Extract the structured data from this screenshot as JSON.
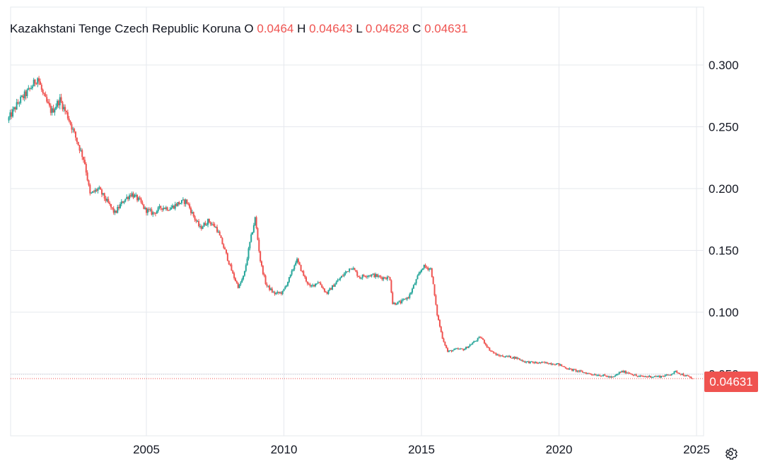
{
  "legend": {
    "symbol": "Kazakhstani Tenge Czech Republic Koruna",
    "o_label": "O",
    "o_value": "0.0464",
    "h_label": "H",
    "h_value": "0.04643",
    "l_label": "L",
    "l_value": "0.04628",
    "c_label": "C",
    "c_value": "0.04631"
  },
  "last_price_label": "0.04631",
  "colors": {
    "up": "#26a69a",
    "down": "#ef5350",
    "grid": "#e6e8ee",
    "text": "#131722"
  },
  "icons": {
    "settings": "gear-icon"
  },
  "chart_data": {
    "type": "candlestick",
    "title": "Kazakhstani Tenge Czech Republic Koruna",
    "x_ticks": [
      "2005",
      "2010",
      "2015",
      "2020",
      "2025"
    ],
    "y_ticks": [
      "0.300",
      "0.250",
      "0.200",
      "0.150",
      "0.100",
      "0.050"
    ],
    "ylim": [
      0.0,
      0.31
    ],
    "xlim": [
      2000.0,
      2025.5
    ],
    "last_close": 0.04631,
    "grid": true,
    "series_path": [
      [
        2000.0,
        0.255
      ],
      [
        2000.4,
        0.27
      ],
      [
        2000.8,
        0.28
      ],
      [
        2001.1,
        0.29
      ],
      [
        2001.3,
        0.275
      ],
      [
        2001.6,
        0.262
      ],
      [
        2001.9,
        0.272
      ],
      [
        2002.2,
        0.258
      ],
      [
        2002.5,
        0.24
      ],
      [
        2002.8,
        0.222
      ],
      [
        2003.0,
        0.195
      ],
      [
        2003.3,
        0.2
      ],
      [
        2003.6,
        0.19
      ],
      [
        2003.9,
        0.18
      ],
      [
        2004.2,
        0.19
      ],
      [
        2004.5,
        0.196
      ],
      [
        2004.8,
        0.19
      ],
      [
        2005.0,
        0.183
      ],
      [
        2005.3,
        0.18
      ],
      [
        2005.6,
        0.185
      ],
      [
        2005.9,
        0.184
      ],
      [
        2006.2,
        0.188
      ],
      [
        2006.5,
        0.19
      ],
      [
        2006.8,
        0.176
      ],
      [
        2007.0,
        0.168
      ],
      [
        2007.3,
        0.174
      ],
      [
        2007.6,
        0.168
      ],
      [
        2007.9,
        0.15
      ],
      [
        2008.2,
        0.13
      ],
      [
        2008.4,
        0.12
      ],
      [
        2008.6,
        0.13
      ],
      [
        2008.8,
        0.155
      ],
      [
        2009.0,
        0.176
      ],
      [
        2009.2,
        0.14
      ],
      [
        2009.4,
        0.122
      ],
      [
        2009.7,
        0.115
      ],
      [
        2010.0,
        0.116
      ],
      [
        2010.3,
        0.13
      ],
      [
        2010.5,
        0.143
      ],
      [
        2010.8,
        0.128
      ],
      [
        2011.0,
        0.12
      ],
      [
        2011.3,
        0.125
      ],
      [
        2011.6,
        0.115
      ],
      [
        2011.9,
        0.123
      ],
      [
        2012.2,
        0.13
      ],
      [
        2012.5,
        0.137
      ],
      [
        2012.8,
        0.128
      ],
      [
        2013.0,
        0.13
      ],
      [
        2013.3,
        0.13
      ],
      [
        2013.6,
        0.128
      ],
      [
        2013.9,
        0.128
      ],
      [
        2014.0,
        0.107
      ],
      [
        2014.3,
        0.108
      ],
      [
        2014.6,
        0.113
      ],
      [
        2014.9,
        0.128
      ],
      [
        2015.1,
        0.137
      ],
      [
        2015.4,
        0.135
      ],
      [
        2015.6,
        0.1
      ],
      [
        2015.8,
        0.08
      ],
      [
        2016.0,
        0.068
      ],
      [
        2016.3,
        0.07
      ],
      [
        2016.6,
        0.07
      ],
      [
        2016.9,
        0.075
      ],
      [
        2017.2,
        0.08
      ],
      [
        2017.5,
        0.07
      ],
      [
        2017.8,
        0.065
      ],
      [
        2018.2,
        0.064
      ],
      [
        2018.5,
        0.063
      ],
      [
        2018.8,
        0.06
      ],
      [
        2019.2,
        0.059
      ],
      [
        2019.6,
        0.059
      ],
      [
        2020.0,
        0.058
      ],
      [
        2020.4,
        0.054
      ],
      [
        2020.8,
        0.052
      ],
      [
        2021.2,
        0.05
      ],
      [
        2021.6,
        0.049
      ],
      [
        2022.0,
        0.047
      ],
      [
        2022.3,
        0.052
      ],
      [
        2022.6,
        0.051
      ],
      [
        2022.9,
        0.048
      ],
      [
        2023.3,
        0.048
      ],
      [
        2023.7,
        0.048
      ],
      [
        2024.0,
        0.049
      ],
      [
        2024.3,
        0.052
      ],
      [
        2024.6,
        0.049
      ],
      [
        2024.9,
        0.04631
      ]
    ]
  }
}
